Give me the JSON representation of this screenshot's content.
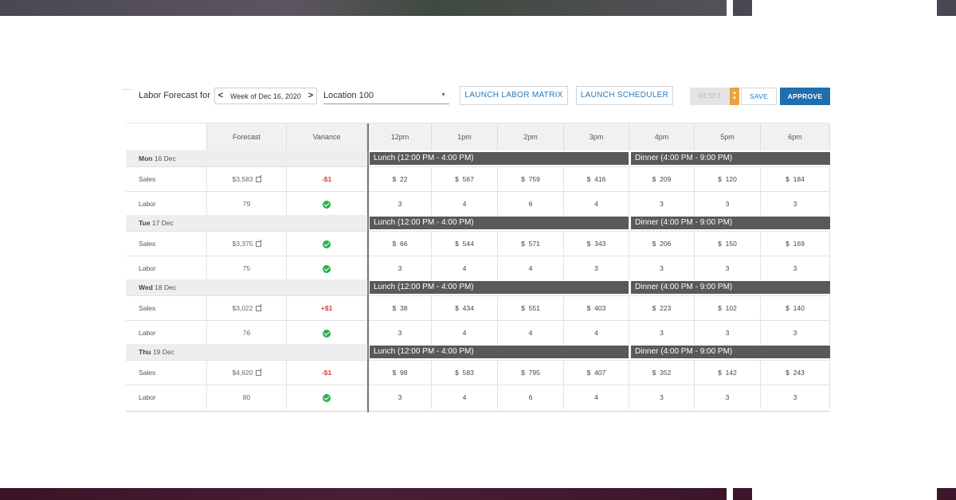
{
  "toolbar": {
    "label": "Labor Forecast for",
    "week": "Week of Dec 16, 2020",
    "prev": "<",
    "next": ">",
    "location": "Location 100",
    "launch_matrix": "LAUNCH LABOR MATRIX",
    "launch_scheduler": "LAUNCH SCHEDULER",
    "reset": "RESET",
    "save": "SAVE",
    "approve": "APPROVE"
  },
  "columns": {
    "forecast": "Forecast",
    "variance": "Variance",
    "hours": [
      "12pm",
      "1pm",
      "2pm",
      "3pm",
      "4pm",
      "5pm",
      "6pm"
    ]
  },
  "shifts": {
    "lunch": "Lunch (12:00 PM - 4:00 PM)",
    "dinner": "Dinner (4:00 PM - 9:00 PM)"
  },
  "row_labels": {
    "sales": "Sales",
    "labor": "Labor"
  },
  "days": [
    {
      "dow": "Mon",
      "date": "16 Dec",
      "sales_forecast": "$3,583",
      "sales_variance": "-$1",
      "labor_forecast": "79",
      "sales": [
        "22",
        "567",
        "759",
        "416",
        "209",
        "120",
        "184"
      ],
      "labor": [
        "3",
        "4",
        "6",
        "4",
        "3",
        "3",
        "3"
      ]
    },
    {
      "dow": "Tue",
      "date": "17 Dec",
      "sales_forecast": "$3,375",
      "sales_variance": "",
      "labor_forecast": "75",
      "sales": [
        "66",
        "544",
        "571",
        "343",
        "206",
        "150",
        "169"
      ],
      "labor": [
        "3",
        "4",
        "4",
        "3",
        "3",
        "3",
        "3"
      ]
    },
    {
      "dow": "Wed",
      "date": "18 Dec",
      "sales_forecast": "$3,022",
      "sales_variance": "+$1",
      "labor_forecast": "76",
      "sales": [
        "38",
        "434",
        "551",
        "403",
        "223",
        "102",
        "140"
      ],
      "labor": [
        "3",
        "4",
        "4",
        "4",
        "3",
        "3",
        "3"
      ]
    },
    {
      "dow": "Thu",
      "date": "19 Dec",
      "sales_forecast": "$4,620",
      "sales_variance": "-$1",
      "labor_forecast": "80",
      "sales": [
        "98",
        "583",
        "795",
        "407",
        "352",
        "142",
        "243"
      ],
      "labor": [
        "3",
        "4",
        "6",
        "4",
        "3",
        "3",
        "3"
      ]
    }
  ],
  "currency": "$",
  "colors": {
    "accent": "#1f6fb0",
    "shift_bar": "#595959",
    "ok": "#27b24b",
    "variance": "#d33a3a",
    "reset_toggle": "#e8a23e"
  }
}
